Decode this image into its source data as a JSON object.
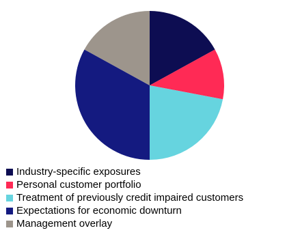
{
  "chart_data": {
    "type": "pie",
    "title": "",
    "start_angle_deg": 0,
    "direction": "clockwise",
    "slices": [
      {
        "label": "Industry-specific exposures",
        "value": 17,
        "color": "#0d0d52"
      },
      {
        "label": "Personal customer portfolio",
        "value": 11,
        "color": "#ff2a55"
      },
      {
        "label": "Treatment of previously credit impaired customers",
        "value": 22,
        "color": "#66d4df"
      },
      {
        "label": "Expectations for economic downturn",
        "value": 33,
        "color": "#141a80"
      },
      {
        "label": "Management overlay",
        "value": 17,
        "color": "#9d958c"
      }
    ],
    "legend_position": "bottom-left"
  }
}
